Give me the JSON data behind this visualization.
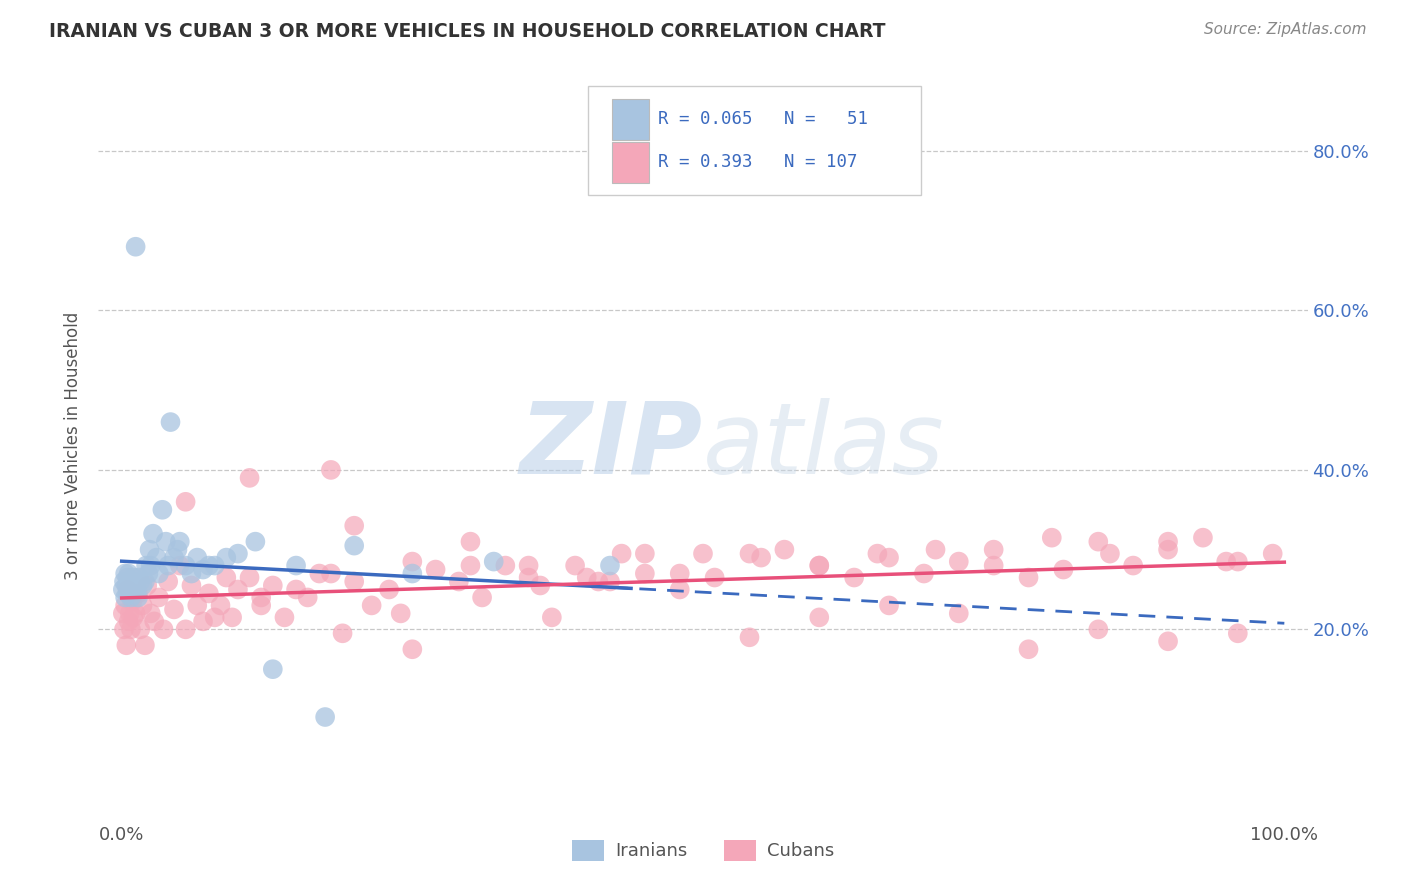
{
  "title": "IRANIAN VS CUBAN 3 OR MORE VEHICLES IN HOUSEHOLD CORRELATION CHART",
  "source": "Source: ZipAtlas.com",
  "ylabel": "3 or more Vehicles in Household",
  "xlim": [
    -0.02,
    1.02
  ],
  "ylim": [
    -0.04,
    0.9
  ],
  "legend_iranian_R": "0.065",
  "legend_iranian_N": "51",
  "legend_cuban_R": "0.393",
  "legend_cuban_N": "107",
  "watermark": "ZIPatlas",
  "iranian_color": "#a8c4e0",
  "cuban_color": "#f4a7b9",
  "iranian_line_color": "#3b6abf",
  "cuban_line_color": "#e8507a",
  "grid_color": "#c8c8c8",
  "background_color": "#ffffff",
  "iranians_x": [
    0.001,
    0.002,
    0.003,
    0.003,
    0.004,
    0.005,
    0.005,
    0.006,
    0.007,
    0.008,
    0.008,
    0.009,
    0.01,
    0.01,
    0.012,
    0.013,
    0.014,
    0.015,
    0.016,
    0.018,
    0.02,
    0.021,
    0.023,
    0.024,
    0.025,
    0.027,
    0.03,
    0.032,
    0.035,
    0.038,
    0.04,
    0.042,
    0.045,
    0.048,
    0.05,
    0.055,
    0.06,
    0.065,
    0.07,
    0.075,
    0.08,
    0.09,
    0.1,
    0.115,
    0.13,
    0.15,
    0.175,
    0.2,
    0.25,
    0.32,
    0.42
  ],
  "iranians_y": [
    0.25,
    0.26,
    0.24,
    0.27,
    0.255,
    0.245,
    0.265,
    0.27,
    0.25,
    0.26,
    0.24,
    0.255,
    0.25,
    0.265,
    0.68,
    0.25,
    0.24,
    0.265,
    0.26,
    0.255,
    0.26,
    0.28,
    0.27,
    0.3,
    0.28,
    0.32,
    0.29,
    0.27,
    0.35,
    0.31,
    0.28,
    0.46,
    0.29,
    0.3,
    0.31,
    0.28,
    0.27,
    0.29,
    0.275,
    0.28,
    0.28,
    0.29,
    0.295,
    0.31,
    0.15,
    0.28,
    0.09,
    0.305,
    0.27,
    0.285,
    0.28
  ],
  "cubans_x": [
    0.001,
    0.002,
    0.003,
    0.004,
    0.005,
    0.006,
    0.007,
    0.008,
    0.009,
    0.01,
    0.012,
    0.014,
    0.016,
    0.018,
    0.02,
    0.022,
    0.025,
    0.028,
    0.032,
    0.036,
    0.04,
    0.045,
    0.05,
    0.055,
    0.06,
    0.065,
    0.07,
    0.075,
    0.08,
    0.085,
    0.09,
    0.095,
    0.1,
    0.11,
    0.12,
    0.13,
    0.14,
    0.15,
    0.16,
    0.17,
    0.18,
    0.19,
    0.2,
    0.215,
    0.23,
    0.25,
    0.27,
    0.29,
    0.31,
    0.33,
    0.35,
    0.37,
    0.39,
    0.41,
    0.43,
    0.45,
    0.48,
    0.51,
    0.54,
    0.57,
    0.6,
    0.63,
    0.66,
    0.69,
    0.72,
    0.75,
    0.78,
    0.81,
    0.84,
    0.87,
    0.9,
    0.93,
    0.96,
    0.99,
    0.2,
    0.25,
    0.3,
    0.35,
    0.4,
    0.45,
    0.5,
    0.55,
    0.6,
    0.65,
    0.7,
    0.75,
    0.8,
    0.85,
    0.9,
    0.95,
    0.12,
    0.18,
    0.24,
    0.3,
    0.36,
    0.42,
    0.48,
    0.54,
    0.6,
    0.66,
    0.72,
    0.78,
    0.84,
    0.9,
    0.96,
    0.055,
    0.11
  ],
  "cubans_y": [
    0.22,
    0.2,
    0.23,
    0.18,
    0.25,
    0.21,
    0.22,
    0.2,
    0.235,
    0.215,
    0.22,
    0.245,
    0.2,
    0.23,
    0.18,
    0.255,
    0.22,
    0.21,
    0.24,
    0.2,
    0.26,
    0.225,
    0.28,
    0.2,
    0.255,
    0.23,
    0.21,
    0.245,
    0.215,
    0.23,
    0.265,
    0.215,
    0.25,
    0.265,
    0.23,
    0.255,
    0.215,
    0.25,
    0.24,
    0.27,
    0.4,
    0.195,
    0.26,
    0.23,
    0.25,
    0.175,
    0.275,
    0.26,
    0.24,
    0.28,
    0.265,
    0.215,
    0.28,
    0.26,
    0.295,
    0.27,
    0.25,
    0.265,
    0.295,
    0.3,
    0.28,
    0.265,
    0.29,
    0.27,
    0.285,
    0.3,
    0.265,
    0.275,
    0.31,
    0.28,
    0.3,
    0.315,
    0.285,
    0.295,
    0.33,
    0.285,
    0.31,
    0.28,
    0.265,
    0.295,
    0.295,
    0.29,
    0.28,
    0.295,
    0.3,
    0.28,
    0.315,
    0.295,
    0.31,
    0.285,
    0.24,
    0.27,
    0.22,
    0.28,
    0.255,
    0.26,
    0.27,
    0.19,
    0.215,
    0.23,
    0.22,
    0.175,
    0.2,
    0.185,
    0.195,
    0.36,
    0.39
  ]
}
